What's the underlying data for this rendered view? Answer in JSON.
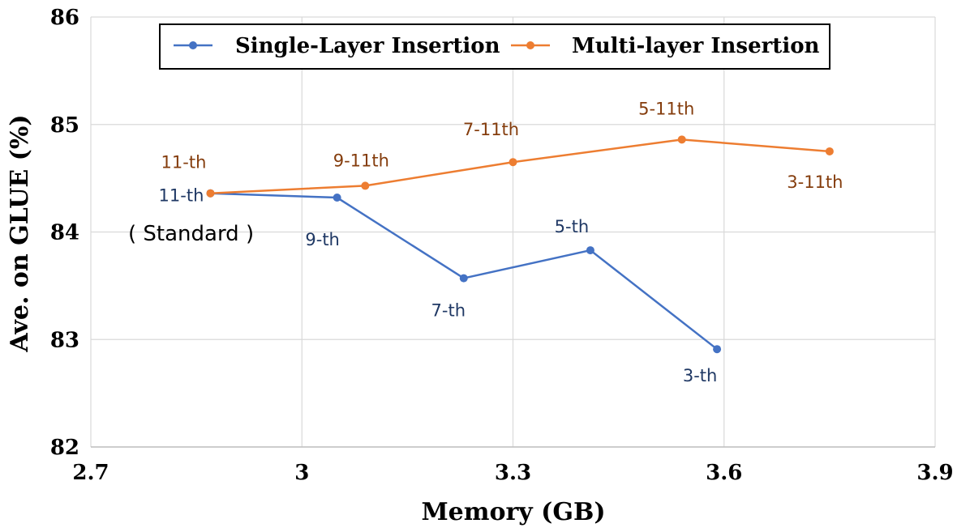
{
  "chart_data": {
    "type": "line",
    "xlabel": "Memory (GB)",
    "ylabel": "Ave. on GLUE (%)",
    "xlim": [
      2.7,
      3.9
    ],
    "ylim": [
      82,
      86
    ],
    "x_ticks": [
      "2.7",
      "3",
      "3.3",
      "3.6",
      "3.9"
    ],
    "y_ticks": [
      "82",
      "83",
      "84",
      "85",
      "86"
    ],
    "grid": true,
    "legend_position": "top-center",
    "annotation": "( Standard )",
    "series": [
      {
        "name": "Single-Layer Insertion",
        "color": "#4472C4",
        "label_color": "#1F3864",
        "points": [
          {
            "x": 2.87,
            "y": 84.36,
            "label": "11-th"
          },
          {
            "x": 3.05,
            "y": 84.32,
            "label": "9-th"
          },
          {
            "x": 3.23,
            "y": 83.57,
            "label": "7-th"
          },
          {
            "x": 3.41,
            "y": 83.83,
            "label": "5-th"
          },
          {
            "x": 3.59,
            "y": 82.91,
            "label": "3-th"
          }
        ]
      },
      {
        "name": "Multi-layer Insertion",
        "color": "#ED7D31",
        "label_color": "#843C0C",
        "points": [
          {
            "x": 2.87,
            "y": 84.36,
            "label": "11-th"
          },
          {
            "x": 3.09,
            "y": 84.43,
            "label": "9-11th"
          },
          {
            "x": 3.3,
            "y": 84.65,
            "label": "7-11th"
          },
          {
            "x": 3.54,
            "y": 84.86,
            "label": "5-11th"
          },
          {
            "x": 3.75,
            "y": 84.75,
            "label": "3-11th"
          }
        ]
      }
    ]
  }
}
